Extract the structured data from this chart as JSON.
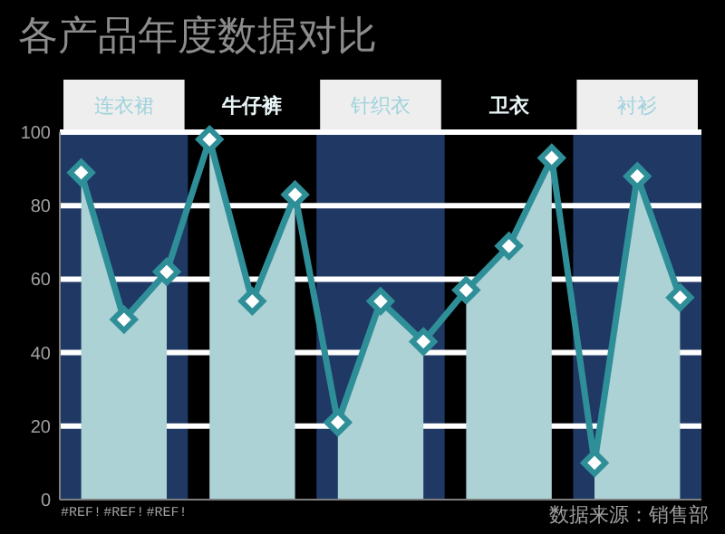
{
  "chart_data": {
    "type": "area",
    "title": "各产品年度数据对比",
    "categories": [
      "#REF!",
      "#REF!",
      "#REF!",
      null,
      null,
      null,
      null,
      null,
      null,
      null,
      null,
      null,
      null,
      null,
      null
    ],
    "series": [
      {
        "color": "#2f8f98",
        "marker": "diamond",
        "values": [
          89,
          49,
          62,
          98,
          54,
          83,
          21,
          54,
          43,
          57,
          69,
          93,
          10,
          88,
          55
        ]
      }
    ],
    "ylim": [
      0,
      100
    ],
    "yticks": [
      0,
      20,
      40,
      60,
      80,
      100
    ],
    "grid": "y",
    "annotations": [
      "连衣裙",
      "牛仔裤",
      "针织衣",
      "卫衣",
      "衬衫",
      "数据来源：销售部"
    ]
  }
}
